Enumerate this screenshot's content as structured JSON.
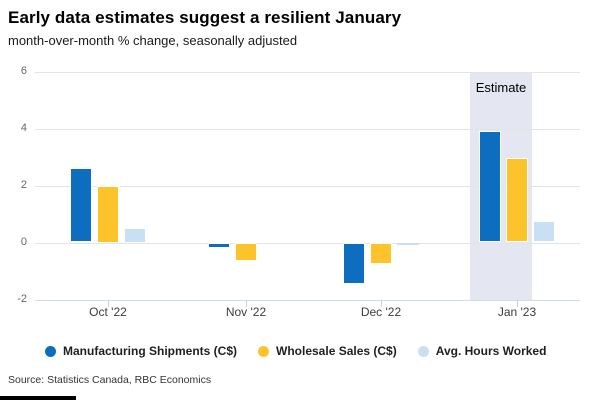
{
  "header": {
    "title": "Early data estimates suggest a resilient January",
    "subtitle": "month-over-month % change, seasonally adjusted"
  },
  "chart_data": {
    "type": "bar",
    "categories": [
      "Oct '22",
      "Nov '22",
      "Dec '22",
      "Jan '23"
    ],
    "series": [
      {
        "name": "Manufacturing Shipments (C$)",
        "color": "#0d6dbe",
        "values": [
          2.6,
          -0.2,
          -1.45,
          3.9
        ]
      },
      {
        "name": "Wholesale Sales (C$)",
        "color": "#fdc32b",
        "values": [
          2.0,
          -0.65,
          -0.75,
          2.95
        ]
      },
      {
        "name": "Avg. Hours Worked",
        "color": "#c9e0f4",
        "values": [
          0.5,
          0,
          -0.1,
          0.75
        ]
      }
    ],
    "ylim": [
      -2,
      6
    ],
    "yticks": [
      6,
      4,
      2,
      0,
      -2
    ],
    "grid": true,
    "legend_position": "bottom",
    "annotation": {
      "label": "Estimate",
      "category": "Jan '23"
    }
  },
  "footer": {
    "source": "Source: Statistics Canada, RBC Economics"
  },
  "colors": {
    "estimate_band": "#e4e7f1",
    "gridline": "#e4e4e4",
    "axis_line": "#cfdded",
    "manufacturing_blue": "#0d6dbe",
    "wholesale_yellow": "#fdc32b",
    "hours_light_blue": "#c9e0f4",
    "brand_bar": "#000000"
  }
}
